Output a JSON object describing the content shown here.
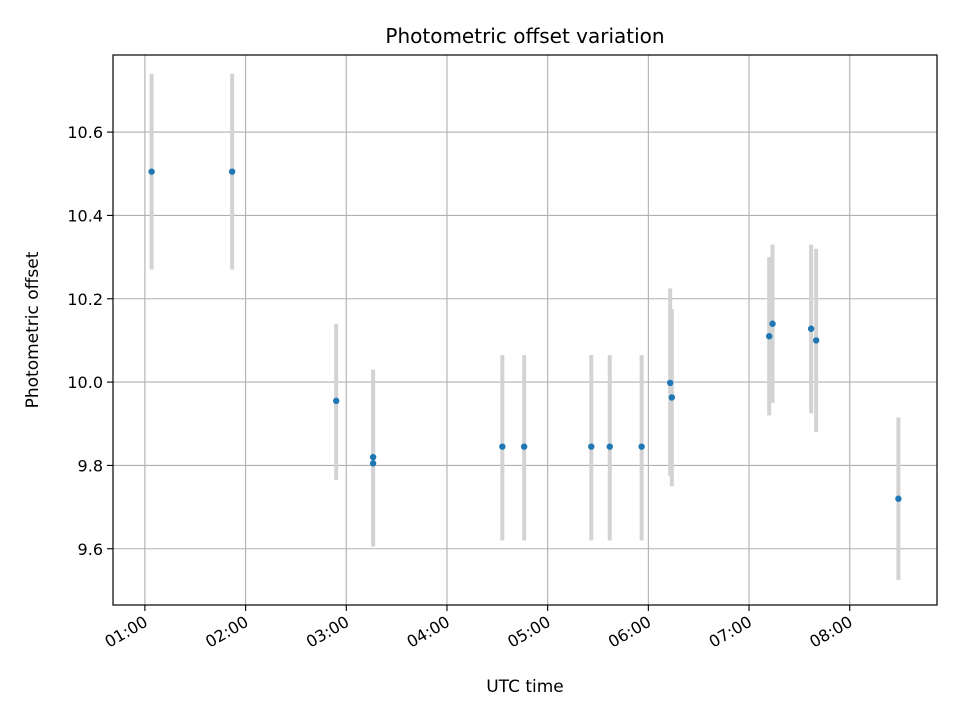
{
  "chart_data": {
    "type": "scatter",
    "title": "Photometric offset variation",
    "xlabel": "UTC time",
    "ylabel": "Photometric offset",
    "x_unit": "time",
    "xlim": [
      "00:41",
      "08:52"
    ],
    "ylim": [
      9.465,
      10.785
    ],
    "x_ticks": [
      "01:00",
      "02:00",
      "03:00",
      "04:00",
      "05:00",
      "06:00",
      "07:00",
      "08:00"
    ],
    "y_ticks": [
      "9.6",
      "9.8",
      "10.0",
      "10.2",
      "10.4",
      "10.6"
    ],
    "grid": true,
    "colors": {
      "point": "#1f77b4",
      "errorbar": "#d3d3d3",
      "grid": "#b0b0b0"
    },
    "series": [
      {
        "points": [
          {
            "x": "01:04",
            "y": 10.505,
            "ylow": 10.27,
            "yhigh": 10.74
          },
          {
            "x": "01:52",
            "y": 10.505,
            "ylow": 10.27,
            "yhigh": 10.74
          },
          {
            "x": "02:54",
            "y": 9.955,
            "ylow": 9.765,
            "yhigh": 10.14
          },
          {
            "x": "03:16",
            "y": 9.82,
            "ylow": 9.61,
            "yhigh": 10.03
          },
          {
            "x": "03:16",
            "y": 9.805,
            "ylow": 9.605,
            "yhigh": 10.0
          },
          {
            "x": "04:33",
            "y": 9.845,
            "ylow": 9.62,
            "yhigh": 10.065
          },
          {
            "x": "04:46",
            "y": 9.845,
            "ylow": 9.62,
            "yhigh": 10.065
          },
          {
            "x": "05:26",
            "y": 9.845,
            "ylow": 9.62,
            "yhigh": 10.065
          },
          {
            "x": "05:37",
            "y": 9.845,
            "ylow": 9.62,
            "yhigh": 10.065
          },
          {
            "x": "05:56",
            "y": 9.845,
            "ylow": 9.62,
            "yhigh": 10.065
          },
          {
            "x": "06:13",
            "y": 9.998,
            "ylow": 9.775,
            "yhigh": 10.225
          },
          {
            "x": "06:14",
            "y": 9.963,
            "ylow": 9.75,
            "yhigh": 10.175
          },
          {
            "x": "07:12",
            "y": 10.11,
            "ylow": 9.92,
            "yhigh": 10.3
          },
          {
            "x": "07:14",
            "y": 10.14,
            "ylow": 9.95,
            "yhigh": 10.33
          },
          {
            "x": "07:37",
            "y": 10.128,
            "ylow": 9.925,
            "yhigh": 10.33
          },
          {
            "x": "07:40",
            "y": 10.1,
            "ylow": 9.88,
            "yhigh": 10.32
          },
          {
            "x": "08:29",
            "y": 9.72,
            "ylow": 9.525,
            "yhigh": 9.915
          }
        ]
      }
    ]
  }
}
